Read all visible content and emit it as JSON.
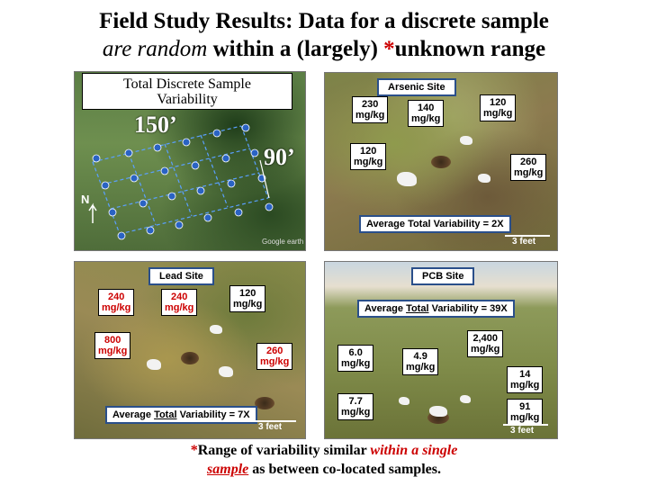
{
  "title": {
    "line1": "Field Study Results: Data for a discrete sample",
    "line2_italic": "are random",
    "line2_rest": " within a (largely) ",
    "line2_star": "*",
    "line2_end": "unknown range"
  },
  "aerial_panel": {
    "heading_line1": "Total Discrete Sample",
    "heading_line2": "Variability",
    "dim_long": "150’",
    "dim_short": "90’",
    "north": "N",
    "credit": "Google earth"
  },
  "arsenic_panel": {
    "site": "Arsenic Site",
    "labels": [
      {
        "value": "230",
        "unit": "mg/kg"
      },
      {
        "value": "140",
        "unit": "mg/kg"
      },
      {
        "value": "120",
        "unit": "mg/kg"
      },
      {
        "value": "120",
        "unit": "mg/kg"
      },
      {
        "value": "260",
        "unit": "mg/kg"
      }
    ],
    "avg_prefix": "Average Total Variability = ",
    "avg_value": "2X",
    "scale": "3 feet"
  },
  "lead_panel": {
    "site": "Lead Site",
    "labels": [
      {
        "value": "240",
        "unit": "mg/kg"
      },
      {
        "value": "240",
        "unit": "mg/kg"
      },
      {
        "value": "120",
        "unit": "mg/kg"
      },
      {
        "value": "800",
        "unit": "mg/kg"
      },
      {
        "value": "260",
        "unit": "mg/kg"
      }
    ],
    "avg_prefix": "Average ",
    "avg_underline": "Total",
    "avg_suffix": " Variability = 7X",
    "scale": "3 feet"
  },
  "pcb_panel": {
    "site": "PCB Site",
    "avg_prefix": "Average ",
    "avg_underline": "Total",
    "avg_suffix": " Variability = 39X",
    "labels": [
      {
        "value": "2,400",
        "unit": "mg/kg"
      },
      {
        "value": "6.0",
        "unit": "mg/kg"
      },
      {
        "value": "4.9",
        "unit": "mg/kg"
      },
      {
        "value": "14",
        "unit": "mg/kg"
      },
      {
        "value": "7.7",
        "unit": "mg/kg"
      },
      {
        "value": "91",
        "unit": "mg/kg"
      }
    ],
    "scale": "3 feet"
  },
  "footer": {
    "star": "*",
    "line1_plain": "Range of variability similar ",
    "line1_italic": "within a single",
    "line2_italic": "sample",
    "line2_rest": " as between co-located samples."
  }
}
